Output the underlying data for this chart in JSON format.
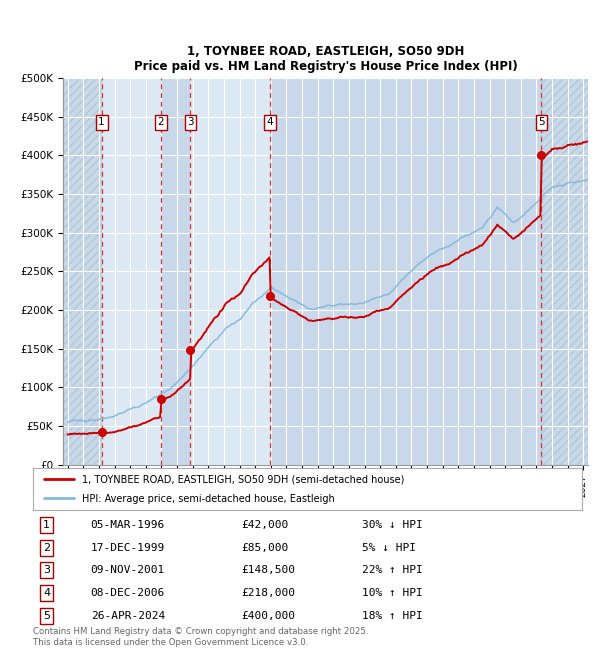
{
  "title_line1": "1, TOYNBEE ROAD, EASTLEIGH, SO50 9DH",
  "title_line2": "Price paid vs. HM Land Registry's House Price Index (HPI)",
  "ylim": [
    0,
    500000
  ],
  "yticks": [
    0,
    50000,
    100000,
    150000,
    200000,
    250000,
    300000,
    350000,
    400000,
    450000,
    500000
  ],
  "ytick_labels": [
    "£0",
    "£50K",
    "£100K",
    "£150K",
    "£200K",
    "£250K",
    "£300K",
    "£350K",
    "£400K",
    "£450K",
    "£500K"
  ],
  "xlim_start": 1993.7,
  "xlim_end": 2027.3,
  "bg_color": "#dce9f5",
  "grid_color": "#ffffff",
  "red_line_color": "#cc0000",
  "blue_line_color": "#85b8d9",
  "sale_dates_decimal": [
    1996.17,
    1999.96,
    2001.86,
    2006.93,
    2024.32
  ],
  "sale_prices": [
    42000,
    85000,
    148500,
    218000,
    400000
  ],
  "sale_labels": [
    "1",
    "2",
    "3",
    "4",
    "5"
  ],
  "vline_color": "#dd3333",
  "label_box_edge": "#aa0000",
  "legend_red_label": "1, TOYNBEE ROAD, EASTLEIGH, SO50 9DH (semi-detached house)",
  "legend_blue_label": "HPI: Average price, semi-detached house, Eastleigh",
  "footer_text": "Contains HM Land Registry data © Crown copyright and database right 2025.\nThis data is licensed under the Open Government Licence v3.0.",
  "table_data": [
    [
      "1",
      "05-MAR-1996",
      "£42,000",
      "30% ↓ HPI"
    ],
    [
      "2",
      "17-DEC-1999",
      "£85,000",
      "5% ↓ HPI"
    ],
    [
      "3",
      "09-NOV-2001",
      "£148,500",
      "22% ↑ HPI"
    ],
    [
      "4",
      "08-DEC-2006",
      "£218,000",
      "10% ↑ HPI"
    ],
    [
      "5",
      "26-APR-2024",
      "£400,000",
      "18% ↑ HPI"
    ]
  ]
}
